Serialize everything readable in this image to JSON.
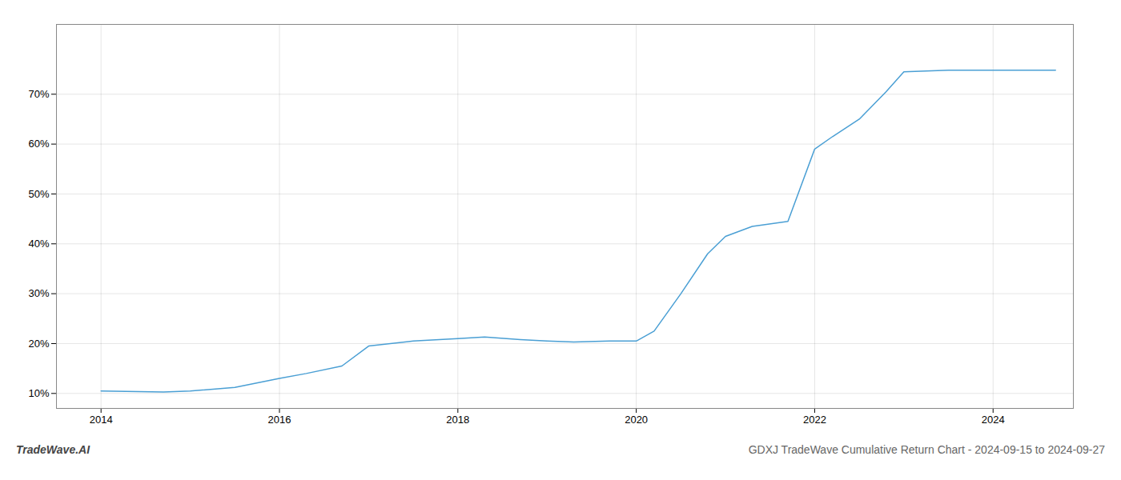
{
  "chart_data": {
    "type": "line",
    "title": "GDXJ TradeWave Cumulative Return Chart - 2024-09-15 to 2024-09-27",
    "annotations": [
      "TradeWave.AI"
    ],
    "x": [
      2014.0,
      2014.7,
      2015.0,
      2015.5,
      2016.0,
      2016.3,
      2016.7,
      2017.0,
      2017.5,
      2018.0,
      2018.3,
      2018.7,
      2019.0,
      2019.3,
      2019.7,
      2020.0,
      2020.2,
      2020.5,
      2020.8,
      2021.0,
      2021.3,
      2021.7,
      2022.0,
      2022.2,
      2022.5,
      2022.8,
      2023.0,
      2023.5,
      2024.0,
      2024.7
    ],
    "values": [
      10.5,
      10.3,
      10.5,
      11.2,
      13.0,
      14.0,
      15.5,
      19.5,
      20.5,
      21.0,
      21.3,
      20.8,
      20.5,
      20.3,
      20.5,
      20.5,
      22.5,
      30.0,
      38.0,
      41.5,
      43.5,
      44.5,
      59.0,
      61.5,
      65.0,
      70.5,
      74.5,
      74.8,
      74.8,
      74.8
    ],
    "color": "#4a9fd4",
    "xlim": [
      2013.5,
      2024.9
    ],
    "ylim": [
      7,
      84
    ],
    "xticks": [
      2014,
      2016,
      2018,
      2020,
      2022,
      2024
    ],
    "yticks": [
      {
        "value": 10,
        "label": "10%"
      },
      {
        "value": 20,
        "label": "20%"
      },
      {
        "value": 30,
        "label": "30%"
      },
      {
        "value": 40,
        "label": "40%"
      },
      {
        "value": 50,
        "label": "50%"
      },
      {
        "value": 60,
        "label": "60%"
      },
      {
        "value": 70,
        "label": "70%"
      }
    ],
    "grid": true
  }
}
